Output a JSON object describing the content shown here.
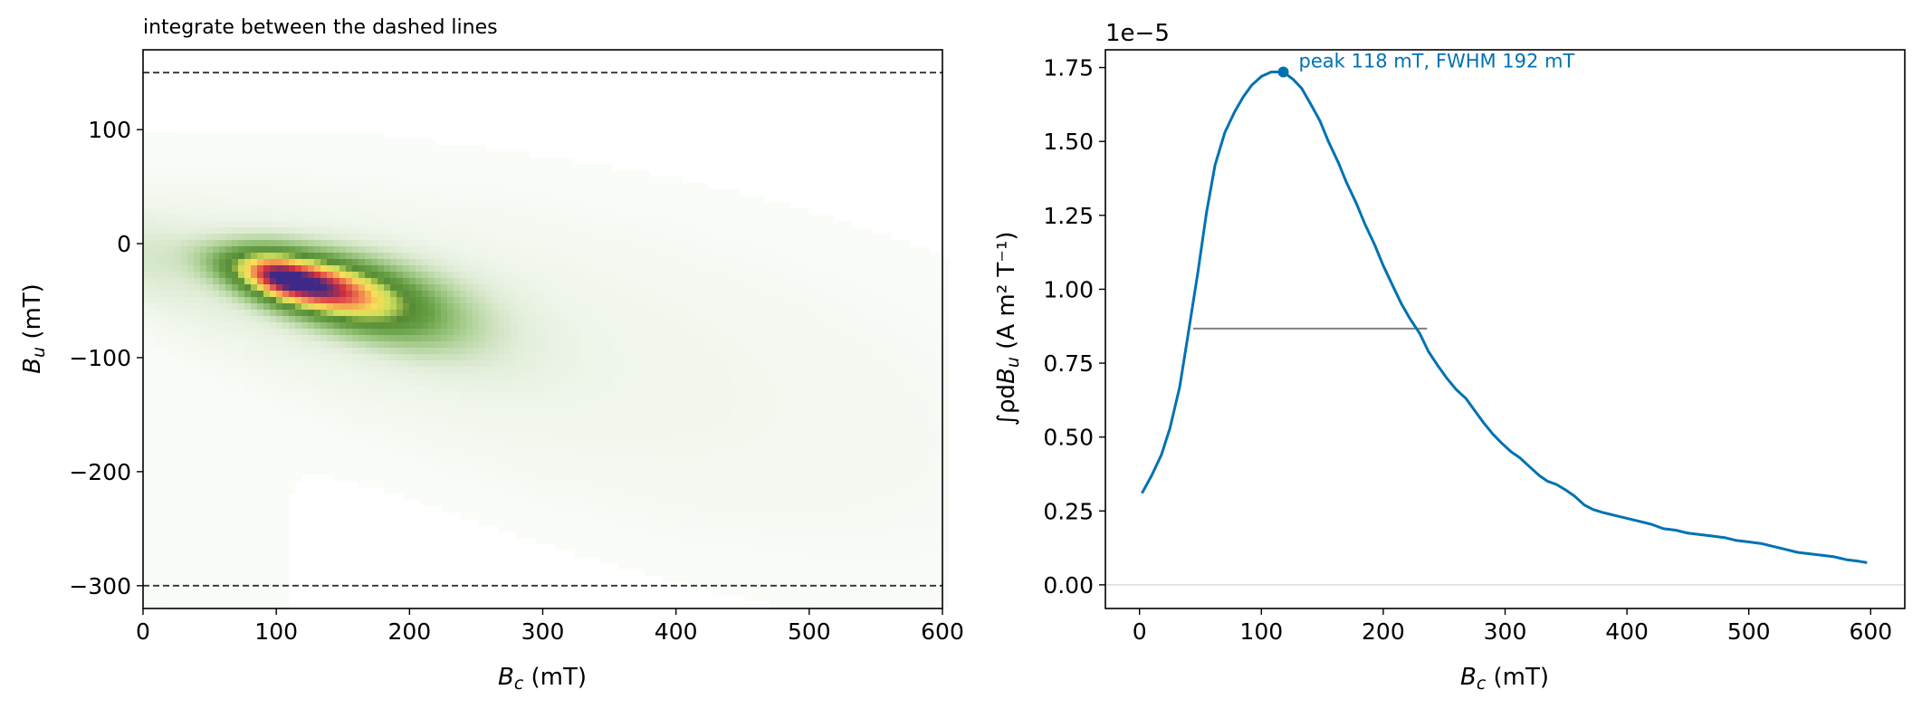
{
  "chart_data": [
    {
      "type": "heatmap",
      "title": "integrate between the dashed lines",
      "xlabel": {
        "base": "B",
        "sub": "c",
        "unit": " (mT)"
      },
      "ylabel": {
        "base": "B",
        "sub": "u",
        "unit": " (mT)"
      },
      "xlim": [
        0,
        600
      ],
      "ylim": [
        -320,
        170
      ],
      "xticks": [
        0,
        100,
        200,
        300,
        400,
        500,
        600
      ],
      "yticks": [
        100,
        0,
        -100,
        -200,
        -300
      ],
      "xtick_labels": [
        "0",
        "100",
        "200",
        "300",
        "400",
        "500",
        "600"
      ],
      "ytick_labels": [
        "100",
        "0",
        "−100",
        "−200",
        "−300"
      ],
      "hlines": [
        150,
        -300
      ],
      "colormap": "RdYlGn with blue low tail (green > yellow > red > purple at peak)",
      "peak_location": {
        "Bc": 110,
        "Bu": -30
      },
      "colors": {
        "low": "#edf5e8",
        "mid": "#5e9a3a",
        "high": "#fde055",
        "top": "#d7303c",
        "peak": "#3c2a86",
        "negative": "#dbe6fb",
        "dashed": "#333333"
      }
    },
    {
      "type": "line",
      "xlabel": {
        "base": "B",
        "sub": "c",
        "unit": " (mT)"
      },
      "ylabel": {
        "prefix": "∫ρd",
        "base": "B",
        "sub": "u",
        "unit": "  (A m² T⁻¹)"
      },
      "offset_text": "1e−5",
      "xlim": [
        -28,
        628
      ],
      "ylim": [
        -0.08,
        1.81
      ],
      "y_scale_note": "values × 1e-5",
      "xticks": [
        0,
        100,
        200,
        300,
        400,
        500,
        600
      ],
      "yticks": [
        0.0,
        0.25,
        0.5,
        0.75,
        1.0,
        1.25,
        1.5,
        1.75
      ],
      "xtick_labels": [
        "0",
        "100",
        "200",
        "300",
        "400",
        "500",
        "600"
      ],
      "ytick_labels": [
        "0.00",
        "0.25",
        "0.50",
        "0.75",
        "1.00",
        "1.25",
        "1.50",
        "1.75"
      ],
      "series": [
        {
          "color": "#0072b2",
          "x": [
            2,
            10,
            18,
            25,
            33,
            40,
            48,
            55,
            62,
            70,
            78,
            85,
            92,
            100,
            108,
            118,
            126,
            133,
            140,
            148,
            155,
            163,
            170,
            178,
            185,
            193,
            200,
            208,
            215,
            222,
            230,
            237,
            245,
            252,
            260,
            268,
            275,
            282,
            290,
            297,
            305,
            312,
            320,
            328,
            335,
            342,
            350,
            357,
            365,
            372,
            380,
            390,
            400,
            410,
            420,
            430,
            440,
            450,
            460,
            470,
            480,
            490,
            500,
            510,
            520,
            530,
            540,
            550,
            560,
            570,
            580,
            590,
            597
          ],
          "values": [
            0.31,
            0.37,
            0.44,
            0.53,
            0.67,
            0.85,
            1.06,
            1.26,
            1.42,
            1.53,
            1.6,
            1.65,
            1.69,
            1.72,
            1.735,
            1.735,
            1.71,
            1.68,
            1.63,
            1.57,
            1.5,
            1.43,
            1.36,
            1.29,
            1.22,
            1.15,
            1.08,
            1.01,
            0.95,
            0.9,
            0.85,
            0.79,
            0.74,
            0.7,
            0.66,
            0.63,
            0.59,
            0.55,
            0.51,
            0.48,
            0.45,
            0.43,
            0.4,
            0.37,
            0.35,
            0.34,
            0.32,
            0.3,
            0.27,
            0.255,
            0.245,
            0.235,
            0.225,
            0.215,
            0.205,
            0.19,
            0.185,
            0.175,
            0.17,
            0.165,
            0.16,
            0.15,
            0.145,
            0.14,
            0.13,
            0.12,
            0.11,
            0.105,
            0.1,
            0.095,
            0.085,
            0.08,
            0.075
          ]
        }
      ],
      "peak_marker": {
        "x": 118,
        "y": 1.735,
        "color": "#0072b2"
      },
      "fwhm_line": {
        "x1": 44,
        "x2": 236,
        "y": 0.867,
        "color": "#808080"
      },
      "zero_line": {
        "y": 0.0,
        "color": "#dddddd"
      },
      "annotation": {
        "text": "peak 118 mT, FWHM 192 mT",
        "color": "#0072b2"
      }
    }
  ]
}
